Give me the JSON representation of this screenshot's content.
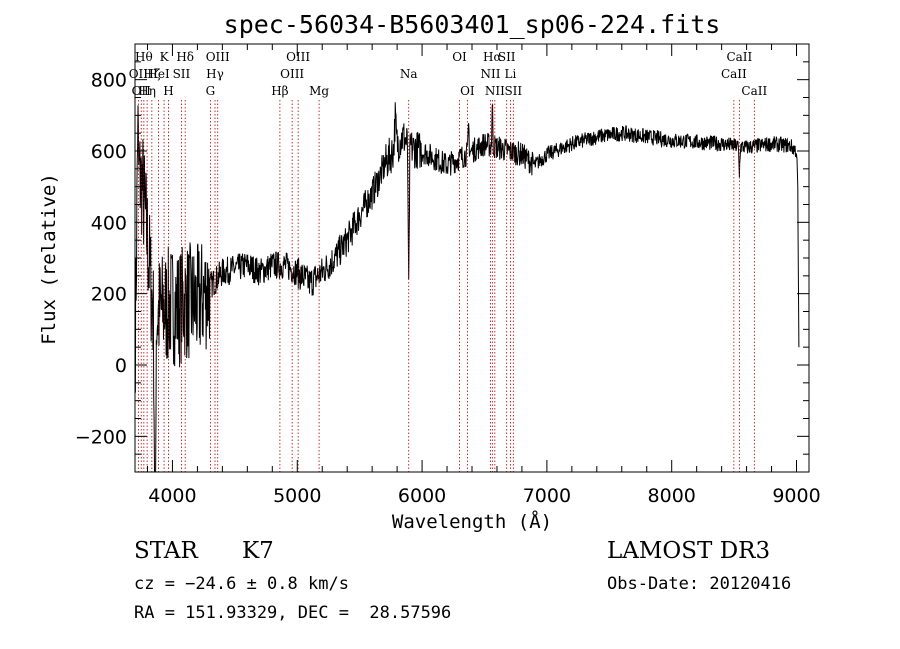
{
  "chart_data": {
    "type": "line",
    "title": "spec-56034-B5603401_sp06-224.fits",
    "xlabel": "Wavelength (Å)",
    "ylabel": "Flux (relative)",
    "xlim": [
      3700,
      9100
    ],
    "ylim": [
      -300,
      900
    ],
    "xticks": [
      4000,
      5000,
      6000,
      7000,
      8000,
      9000
    ],
    "yticks": [
      -200,
      0,
      200,
      400,
      600,
      800
    ],
    "xtick_labels": [
      "4000",
      "5000",
      "6000",
      "7000",
      "8000",
      "9000"
    ],
    "ytick_labels": [
      "−200",
      "0",
      "200",
      "400",
      "600",
      "800"
    ],
    "spectrum_anchor_points": [
      [
        3700,
        0
      ],
      [
        3720,
        550
      ],
      [
        3760,
        500
      ],
      [
        3800,
        350
      ],
      [
        3850,
        120
      ],
      [
        3900,
        150
      ],
      [
        3950,
        160
      ],
      [
        4000,
        170
      ],
      [
        4050,
        160
      ],
      [
        4100,
        180
      ],
      [
        4200,
        170
      ],
      [
        4300,
        220
      ],
      [
        4400,
        260
      ],
      [
        4500,
        270
      ],
      [
        4600,
        280
      ],
      [
        4700,
        260
      ],
      [
        4800,
        280
      ],
      [
        4900,
        280
      ],
      [
        5000,
        260
      ],
      [
        5100,
        230
      ],
      [
        5200,
        260
      ],
      [
        5300,
        300
      ],
      [
        5400,
        350
      ],
      [
        5500,
        420
      ],
      [
        5600,
        480
      ],
      [
        5700,
        560
      ],
      [
        5800,
        620
      ],
      [
        5850,
        640
      ],
      [
        5900,
        610
      ],
      [
        6000,
        600
      ],
      [
        6100,
        580
      ],
      [
        6200,
        560
      ],
      [
        6300,
        580
      ],
      [
        6400,
        600
      ],
      [
        6500,
        620
      ],
      [
        6600,
        610
      ],
      [
        6700,
        600
      ],
      [
        6800,
        590
      ],
      [
        6900,
        560
      ],
      [
        7000,
        590
      ],
      [
        7200,
        620
      ],
      [
        7400,
        640
      ],
      [
        7600,
        650
      ],
      [
        7800,
        640
      ],
      [
        8000,
        630
      ],
      [
        8200,
        625
      ],
      [
        8400,
        620
      ],
      [
        8600,
        610
      ],
      [
        8800,
        620
      ],
      [
        8950,
        615
      ],
      [
        9000,
        600
      ],
      [
        9010,
        500
      ],
      [
        9020,
        0
      ]
    ],
    "spectrum_features": [
      {
        "x": 5893,
        "depth": 400,
        "width": 6
      },
      {
        "x": 3722,
        "depth": -120,
        "width": 5
      },
      {
        "x": 3860,
        "depth": 900,
        "width": 6
      },
      {
        "x": 6563,
        "depth": -110,
        "width": 5
      },
      {
        "x": 6373,
        "depth": -80,
        "width": 5
      },
      {
        "x": 5785,
        "depth": -80,
        "width": 8
      },
      {
        "x": 8542,
        "depth": 80,
        "width": 5
      }
    ],
    "lines": [
      {
        "x": 3727,
        "label": "OII",
        "row": 1
      },
      {
        "x": 3750,
        "label": "OII",
        "row": 2
      },
      {
        "x": 3771,
        "label": "Hθ",
        "row": 0
      },
      {
        "x": 3797,
        "label": "Hη",
        "row": 2
      },
      {
        "x": 3835,
        "label": "Hζ",
        "row": 1
      },
      {
        "x": 3889,
        "label": "HeI",
        "row": 1
      },
      {
        "x": 3933,
        "label": "K",
        "row": 0
      },
      {
        "x": 3968,
        "label": "H",
        "row": 2
      },
      {
        "x": 4072,
        "label": "SII",
        "row": 1
      },
      {
        "x": 4102,
        "label": "Hδ",
        "row": 0
      },
      {
        "x": 4304,
        "label": "G",
        "row": 2
      },
      {
        "x": 4341,
        "label": "Hγ",
        "row": 1
      },
      {
        "x": 4363,
        "label": "OIII",
        "row": 0
      },
      {
        "x": 4861,
        "label": "Hβ",
        "row": 2
      },
      {
        "x": 4959,
        "label": "OIII",
        "row": 1
      },
      {
        "x": 5007,
        "label": "OIII",
        "row": 0
      },
      {
        "x": 5175,
        "label": "Mg",
        "row": 2
      },
      {
        "x": 5893,
        "label": "Na",
        "row": 1
      },
      {
        "x": 6300,
        "label": "OI",
        "row": 0
      },
      {
        "x": 6363,
        "label": "OI",
        "row": 2
      },
      {
        "x": 6548,
        "label": "NII",
        "row": 1
      },
      {
        "x": 6563,
        "label": "Hα",
        "row": 0
      },
      {
        "x": 6583,
        "label": "NII",
        "row": 2
      },
      {
        "x": 6678,
        "label": "SII",
        "row": 0
      },
      {
        "x": 6708,
        "label": "Li",
        "row": 1
      },
      {
        "x": 6731,
        "label": "SII",
        "row": 2
      },
      {
        "x": 8498,
        "label": "CaII",
        "row": 1
      },
      {
        "x": 8542,
        "label": "CaII",
        "row": 0
      },
      {
        "x": 8662,
        "label": "CaII",
        "row": 2
      }
    ],
    "line_color": "#b00000",
    "spectrum_color": "#000000"
  },
  "info": {
    "class": "STAR",
    "subclass": "K7",
    "cz": "cz = −24.6 ± 0.8 km/s",
    "coords": "RA = 151.93329, DEC =  28.57596",
    "survey": "LAMOST DR3",
    "obsdate": "Obs-Date: 20120416"
  }
}
